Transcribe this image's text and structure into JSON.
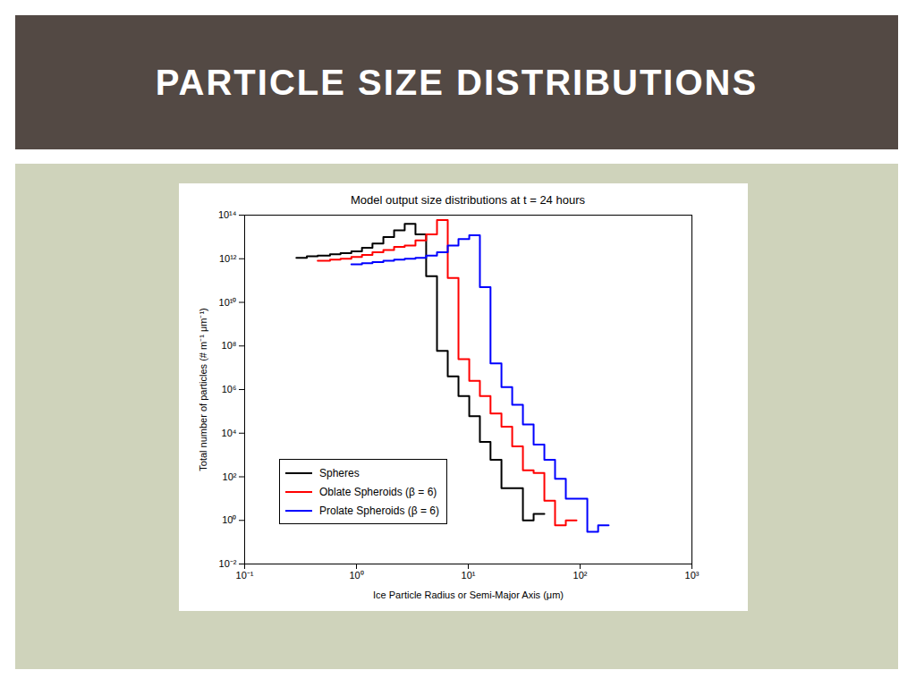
{
  "header": {
    "title": "PARTICLE SIZE DISTRIBUTIONS"
  },
  "chart_data": {
    "type": "line",
    "title": "Model output size distributions at t = 24 hours",
    "x_label": "Ice Particle Radius or Semi-Major Axis (μm)",
    "y_label": "Total number of particles (# m⁻¹ μm⁻¹)",
    "log": true,
    "grid": false,
    "legend": "lower left",
    "xlim": [
      0.1,
      1000
    ],
    "ylim": [
      0.01,
      100000000000000
    ],
    "xticks": [
      {
        "value": 0.1,
        "label": "10⁻¹"
      },
      {
        "value": 1,
        "label": "10⁰"
      },
      {
        "value": 10,
        "label": "10¹"
      },
      {
        "value": 100,
        "label": "10²"
      },
      {
        "value": 1000,
        "label": "10³"
      }
    ],
    "yticks": [
      {
        "value": 0.01,
        "label": "10⁻²"
      },
      {
        "value": 1,
        "label": "10⁰"
      },
      {
        "value": 100,
        "label": "10²"
      },
      {
        "value": 10000,
        "label": "10⁴"
      },
      {
        "value": 1000000,
        "label": "10⁶"
      },
      {
        "value": 100000000,
        "label": "10⁸"
      },
      {
        "value": 10000000000,
        "label": "10¹⁰"
      },
      {
        "value": 1000000000000,
        "label": "10¹²"
      },
      {
        "value": 100000000000000,
        "label": "10¹⁴"
      }
    ],
    "series": [
      {
        "name": "Spheres",
        "color": "#000000",
        "line_style": "step",
        "bins": [
          0.29,
          0.36,
          0.45,
          0.58,
          0.72,
          0.9,
          1.12,
          1.39,
          1.74,
          2.17,
          2.7,
          3.37,
          4.2,
          5.25,
          6.55,
          8.17,
          10.2,
          12.7,
          15.8,
          19.8,
          24.7,
          30.8,
          38.4,
          47.9
        ],
        "values": [
          1100000000000.0,
          1300000000000.0,
          1400000000000.0,
          1600000000000.0,
          1800000000000.0,
          2200000000000.0,
          3200000000000.0,
          5000000000000.0,
          10000000000000.0,
          20000000000000.0,
          40000000000000.0,
          13000000000000.0,
          160000000000.0,
          60000000.0,
          4000000.0,
          500000.0,
          60000.0,
          4000.0,
          600,
          30,
          30,
          1,
          2
        ]
      },
      {
        "name": "Oblate Spheroids (β = 6)",
        "color": "#ff0000",
        "line_style": "step",
        "bins": [
          0.45,
          0.58,
          0.72,
          0.9,
          1.12,
          1.39,
          1.74,
          2.17,
          2.7,
          3.37,
          4.2,
          5.25,
          6.55,
          8.17,
          10.2,
          12.7,
          15.8,
          19.8,
          24.7,
          30.8,
          38.4,
          47.9,
          59.7,
          74.5,
          92.9
        ],
        "values": [
          800000000000.0,
          900000000000.0,
          1000000000000.0,
          1200000000000.0,
          1500000000000.0,
          2000000000000.0,
          2500000000000.0,
          3500000000000.0,
          4000000000000.0,
          7000000000000.0,
          13000000000000.0,
          60000000000000.0,
          130000000000.0,
          25000000.0,
          2500000.0,
          500000.0,
          80000.0,
          20000.0,
          2500,
          200,
          150,
          8,
          0.6,
          1
        ]
      },
      {
        "name": "Prolate Spheroids (β = 6)",
        "color": "#0000ff",
        "line_style": "step",
        "bins": [
          0.9,
          1.12,
          1.39,
          1.74,
          2.17,
          2.7,
          3.37,
          4.2,
          5.25,
          6.55,
          8.17,
          10.2,
          12.7,
          15.8,
          19.8,
          24.7,
          30.8,
          38.4,
          47.9,
          59.7,
          74.5,
          92.9,
          116,
          145,
          180
        ],
        "values": [
          560000000000.0,
          630000000000.0,
          700000000000.0,
          800000000000.0,
          900000000000.0,
          1000000000000.0,
          1100000000000.0,
          1400000000000.0,
          2000000000000.0,
          4000000000000.0,
          8000000000000.0,
          12000000000000.0,
          50000000000.0,
          16000000.0,
          1300000.0,
          200000.0,
          25000.0,
          3000,
          600,
          80,
          10,
          10,
          0.3,
          0.6
        ]
      }
    ]
  }
}
